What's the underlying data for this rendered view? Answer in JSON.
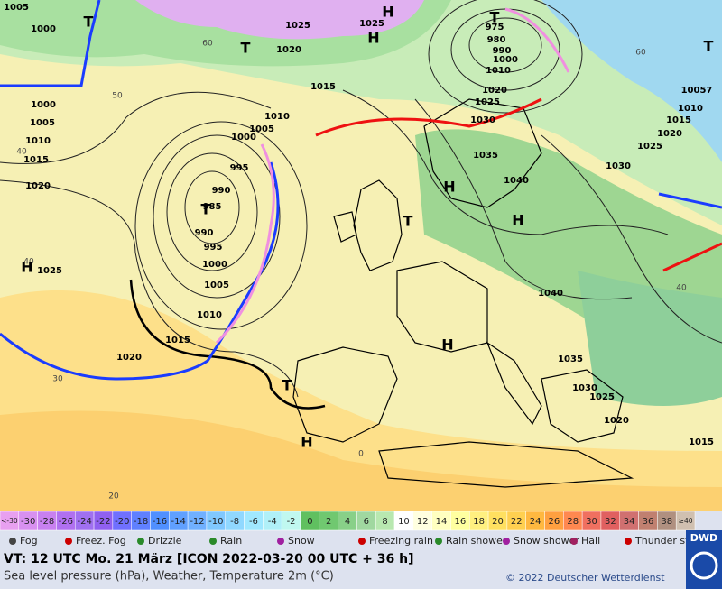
{
  "map": {
    "isobar_labels": [
      1005,
      1000,
      1025,
      1020,
      1025,
      975,
      980,
      990,
      1000,
      1010,
      1020,
      1025,
      1030,
      1035,
      1040,
      1030,
      1025,
      1020,
      1015,
      1010,
      10057,
      1015,
      1010,
      1005,
      1000,
      995,
      990,
      985,
      990,
      995,
      1000,
      1005,
      1010,
      1015,
      1020,
      1025,
      1020,
      1015,
      1010,
      1005,
      1000,
      1040,
      1035,
      1030,
      1025,
      1020,
      1015
    ],
    "temperature_labels": [
      60,
      50,
      40,
      30,
      20,
      0,
      40,
      40,
      60
    ],
    "pressure_centers": [
      "H",
      "T",
      "T",
      "H",
      "H",
      "T",
      "H",
      "T",
      "H",
      "H",
      "T",
      "T",
      "H",
      "T"
    ]
  },
  "scale": {
    "labels": [
      "<-30",
      -30,
      -28,
      -26,
      -24,
      -22,
      -20,
      -18,
      -16,
      -14,
      -12,
      -10,
      -8,
      -6,
      -4,
      -2,
      0,
      2,
      4,
      6,
      8,
      10,
      12,
      14,
      16,
      18,
      20,
      22,
      24,
      26,
      28,
      30,
      32,
      34,
      36,
      38,
      "≥40"
    ],
    "colors": [
      "#e8a0f0",
      "#d890f0",
      "#c880f0",
      "#b070f0",
      "#a070f0",
      "#9060f0",
      "#7070ff",
      "#6080ff",
      "#5090ff",
      "#60a0ff",
      "#70b0ff",
      "#80c8ff",
      "#90d8ff",
      "#a0e8ff",
      "#b0f0f8",
      "#c0f8f0",
      "#60c060",
      "#70c870",
      "#88d088",
      "#a0d8a0",
      "#b8e8b0",
      "#ffffff",
      "#ffffe0",
      "#ffffc0",
      "#ffffa0",
      "#fff080",
      "#ffe060",
      "#ffd050",
      "#ffb840",
      "#ffa040",
      "#ff8850",
      "#f07060",
      "#e06060",
      "#d07070",
      "#c08070",
      "#b09080",
      "#d0c0b0"
    ]
  },
  "legend": [
    "Fog",
    "Freez. Fog",
    "Drizzle",
    "Rain",
    "Snow",
    "Freezing rain",
    "Rain shower",
    "Snow shower",
    "Hail",
    "Thunder storm"
  ],
  "header": {
    "valid_time": "VT: 12 UTC Mo.  21 März [ICON 2022-03-20  00 UTC + 36 h]",
    "subtitle": "Sea level pressure (hPa), Weather, Temperature 2m (°C)",
    "copyright": "© 2022 Deutscher Wetterdienst",
    "logo": "DWD"
  }
}
